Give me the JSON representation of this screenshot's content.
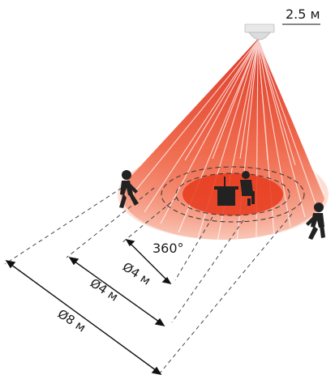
{
  "diagram": {
    "mount_height": "2.5 м",
    "angle": "360°",
    "diameter_inner": "Ø4 м",
    "diameter_middle": "Ø4 м",
    "diameter_outer": "Ø8 м"
  },
  "colors": {
    "beam_top": "#e8421f",
    "beam_bottom": "#f7b09a",
    "floor_outer": "#fbd9cc",
    "floor_mid": "#f6a78e",
    "floor_inner": "#ee4a2b",
    "person": "#222222",
    "sensor": "#e4e4e4"
  }
}
